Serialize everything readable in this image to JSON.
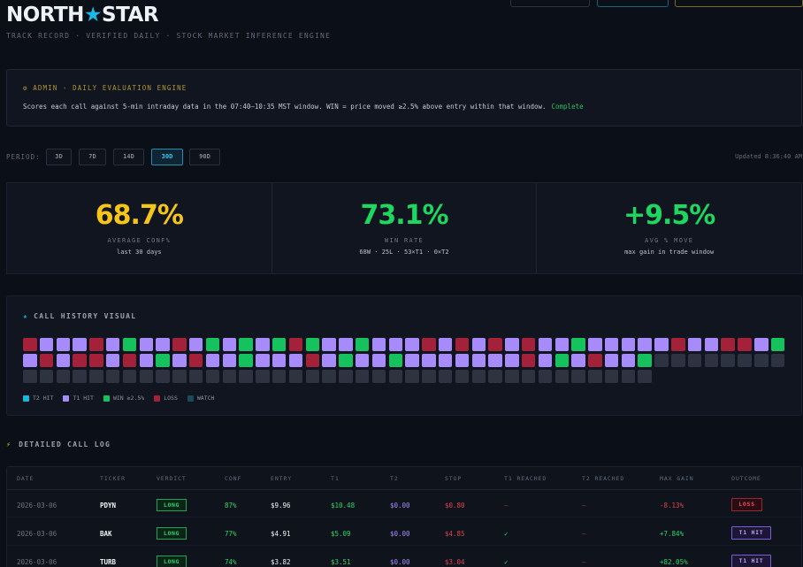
{
  "brand": {
    "name_left": "NORTH",
    "star": "★",
    "name_right": "STAR",
    "tagline": "TRACK RECORD · VERIFIED DAILY · STOCK MARKET INFERENCE ENGINE"
  },
  "admin": {
    "title": "⚙ ADMIN · DAILY EVALUATION ENGINE",
    "description": "Scores each call against 5-min intraday data in the 07:40–10:35 MST window. WIN = price moved ≥2.5% above entry within that window.",
    "status": "Complete"
  },
  "period": {
    "label": "PERIOD:",
    "options": [
      "3D",
      "7D",
      "14D",
      "30D",
      "90D"
    ],
    "selected": "30D",
    "updated": "Updated 8:36:40 AM"
  },
  "stats": [
    {
      "value": "68.7%",
      "label": "AVERAGE CONF%",
      "sub": "last 30 days",
      "color": "#f5c518"
    },
    {
      "value": "73.1%",
      "label": "WIN RATE",
      "sub": "68W · 25L · 53×T1 · 0×T2",
      "color": "#1ed760"
    },
    {
      "value": "+9.5%",
      "label": "AVG % MOVE",
      "sub": "max gain in trade window",
      "color": "#1ed760"
    }
  ],
  "history": {
    "title": "CALL HISTORY VISUAL",
    "colors": {
      "T": "#a78bfa",
      "L": "#a3223a",
      "W": "#16c25d",
      "P": "#2d3340",
      "C": "#18b6e0"
    },
    "cells": "LTTTLTWTTLTWTWTWLWTTWTTTLTLTLTLTTWTTTTTLTTLLTWTLTLLTLTWTLTTWTTTLTWTTWTTTTTTTLTWTLTTWPPPPPPPPPPPPPPPPPPPPPPPPPPPPPPPPPPPPPPPPPPPPPP",
    "legend": [
      {
        "label": "T2 HIT",
        "color": "#18b6e0"
      },
      {
        "label": "T1 HIT",
        "color": "#a78bfa"
      },
      {
        "label": "WIN ≥2.5%",
        "color": "#16c25d"
      },
      {
        "label": "LOSS",
        "color": "#a3223a"
      },
      {
        "label": "WATCH",
        "color": "#1d4a5a"
      }
    ]
  },
  "log": {
    "title": "DETAILED CALL LOG",
    "columns": [
      "DATE",
      "TICKER",
      "VERDICT",
      "CONF",
      "ENTRY",
      "T1",
      "T2",
      "STOP",
      "T1 REACHED",
      "T2 REACHED",
      "MAX GAIN",
      "OUTCOME"
    ],
    "rows": [
      {
        "date": "2026-03-06",
        "ticker": "PDYN",
        "verdict": "LONG",
        "conf": "87%",
        "entry": "$9.96",
        "t1": "$10.48",
        "t2": "$0.00",
        "stop": "$0.80",
        "t1r": "—",
        "t2r": "—",
        "max": "-8.13%",
        "outcome": "LOSS"
      },
      {
        "date": "2026-03-06",
        "ticker": "BAK",
        "verdict": "LONG",
        "conf": "77%",
        "entry": "$4.91",
        "t1": "$5.09",
        "t2": "$0.00",
        "stop": "$4.85",
        "t1r": "✓",
        "t2r": "—",
        "max": "+7.84%",
        "outcome": "T1 HIT"
      },
      {
        "date": "2026-03-06",
        "ticker": "TURB",
        "verdict": "LONG",
        "conf": "74%",
        "entry": "$3.82",
        "t1": "$3.51",
        "t2": "$0.00",
        "stop": "$3.04",
        "t1r": "✓",
        "t2r": "—",
        "max": "+82.05%",
        "outcome": "T1 HIT"
      }
    ]
  }
}
